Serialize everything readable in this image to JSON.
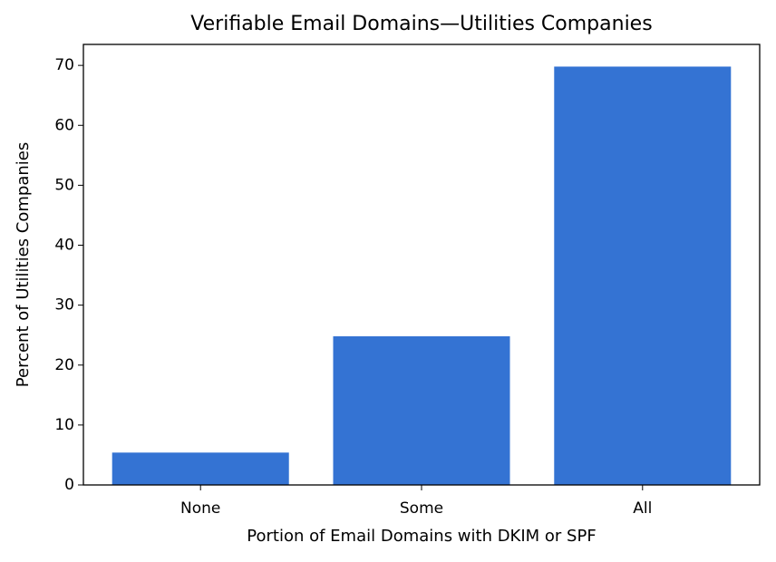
{
  "chart_data": {
    "type": "bar",
    "title": "Verifiable Email Domains—Utilities Companies",
    "x_label": "Portion of Email Domains with DKIM or SPF",
    "y_label": "Percent of Utilities Companies",
    "categories": [
      "None",
      "Some",
      "All"
    ],
    "values": [
      5.4,
      24.8,
      69.8
    ],
    "color": "#3473d3",
    "ylim": [
      0,
      73.5
    ],
    "yticks": [
      0,
      10,
      20,
      30,
      40,
      50,
      60,
      70
    ],
    "grid": false
  }
}
